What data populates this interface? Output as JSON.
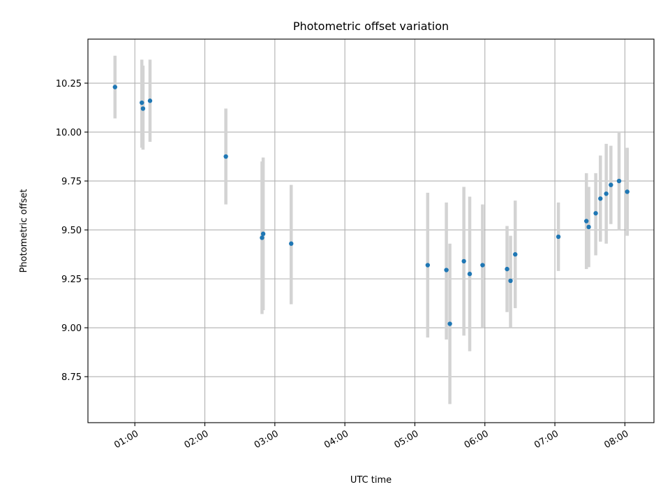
{
  "chart_data": {
    "type": "scatter",
    "title": "Photometric offset variation",
    "xlabel": "UTC time",
    "ylabel": "Photometric offset",
    "x_axis_format": "HH:MM",
    "xlim_minutes": [
      19.8,
      504.9
    ],
    "ylim": [
      8.515,
      10.475
    ],
    "x_ticks": [
      "01:00",
      "02:00",
      "03:00",
      "04:00",
      "05:00",
      "06:00",
      "07:00",
      "08:00"
    ],
    "y_ticks": [
      "8.75",
      "9.00",
      "9.25",
      "9.50",
      "9.75",
      "10.00",
      "10.25"
    ],
    "grid": true,
    "colors": {
      "points": "#1f77b4",
      "error_bars": "#d3d3d3",
      "grid": "#b0b0b0"
    },
    "points": [
      {
        "t": "00:43",
        "y": 10.23,
        "err_low": 10.07,
        "err_high": 10.39
      },
      {
        "t": "01:06",
        "y": 10.15,
        "err_low": 9.92,
        "err_high": 10.37
      },
      {
        "t": "01:07",
        "y": 10.12,
        "err_low": 9.91,
        "err_high": 10.34
      },
      {
        "t": "01:13",
        "y": 10.16,
        "err_low": 9.95,
        "err_high": 10.37
      },
      {
        "t": "02:18",
        "y": 9.875,
        "err_low": 9.63,
        "err_high": 10.12
      },
      {
        "t": "02:50",
        "y": 9.48,
        "err_low": 9.09,
        "err_high": 9.87
      },
      {
        "t": "02:49",
        "y": 9.46,
        "err_low": 9.07,
        "err_high": 9.85
      },
      {
        "t": "03:14",
        "y": 9.43,
        "err_low": 9.12,
        "err_high": 9.73
      },
      {
        "t": "05:11",
        "y": 9.32,
        "err_low": 8.95,
        "err_high": 9.69
      },
      {
        "t": "05:27",
        "y": 9.295,
        "err_low": 8.94,
        "err_high": 9.64
      },
      {
        "t": "05:30",
        "y": 9.02,
        "err_low": 8.61,
        "err_high": 9.43
      },
      {
        "t": "05:42",
        "y": 9.34,
        "err_low": 8.96,
        "err_high": 9.72
      },
      {
        "t": "05:47",
        "y": 9.275,
        "err_low": 8.88,
        "err_high": 9.67
      },
      {
        "t": "05:58",
        "y": 9.32,
        "err_low": 9.0,
        "err_high": 9.63
      },
      {
        "t": "06:19",
        "y": 9.3,
        "err_low": 9.08,
        "err_high": 9.52
      },
      {
        "t": "06:22",
        "y": 9.24,
        "err_low": 9.0,
        "err_high": 9.47
      },
      {
        "t": "06:26",
        "y": 9.375,
        "err_low": 9.1,
        "err_high": 9.65
      },
      {
        "t": "07:03",
        "y": 9.465,
        "err_low": 9.29,
        "err_high": 9.64
      },
      {
        "t": "07:27",
        "y": 9.545,
        "err_low": 9.3,
        "err_high": 9.79
      },
      {
        "t": "07:29",
        "y": 9.515,
        "err_low": 9.31,
        "err_high": 9.72
      },
      {
        "t": "07:35",
        "y": 9.585,
        "err_low": 9.37,
        "err_high": 9.79
      },
      {
        "t": "07:39",
        "y": 9.66,
        "err_low": 9.44,
        "err_high": 9.88
      },
      {
        "t": "07:44",
        "y": 9.685,
        "err_low": 9.43,
        "err_high": 9.94
      },
      {
        "t": "07:48",
        "y": 9.73,
        "err_low": 9.53,
        "err_high": 9.93
      },
      {
        "t": "07:55",
        "y": 9.75,
        "err_low": 9.5,
        "err_high": 10.0
      },
      {
        "t": "08:02",
        "y": 9.695,
        "err_low": 9.47,
        "err_high": 9.92
      }
    ]
  }
}
